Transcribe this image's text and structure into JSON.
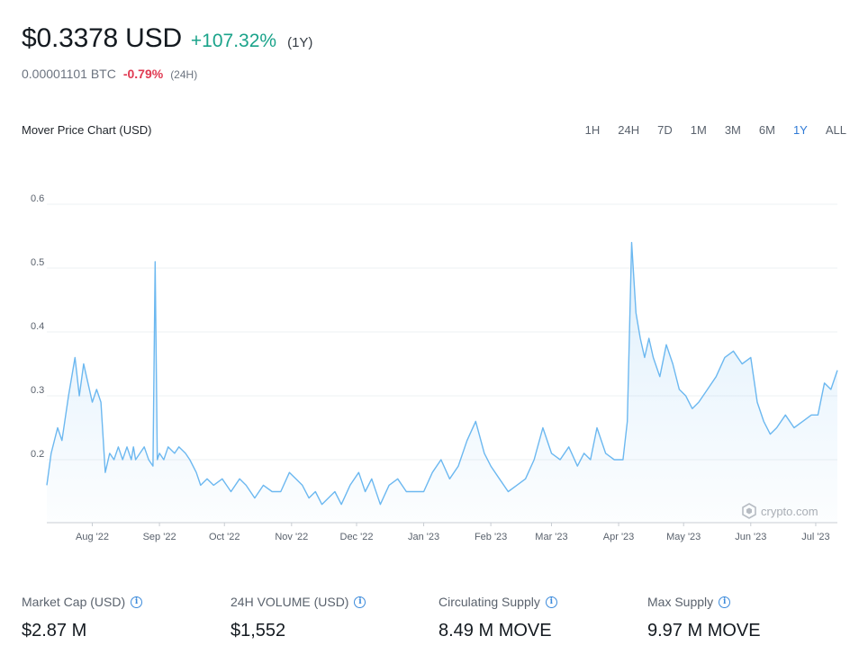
{
  "header": {
    "price": "$0.3378 USD",
    "change": "+107.32%",
    "period": "(1Y)",
    "btc_price": "0.00001101 BTC",
    "btc_change": "-0.79%",
    "btc_period": "(24H)"
  },
  "chart_header": {
    "title": "Mover Price Chart (USD)",
    "ranges": [
      "1H",
      "24H",
      "7D",
      "1M",
      "3M",
      "6M",
      "1Y",
      "ALL"
    ],
    "active_range": "1Y"
  },
  "watermark": "crypto.com",
  "colors": {
    "line": "#6cb8f0",
    "positive": "#1aa38a",
    "negative": "#e03a52",
    "active": "#2f7ad6"
  },
  "chart_data": {
    "type": "area",
    "title": "Mover Price Chart (USD)",
    "xlabel": "",
    "ylabel": "",
    "ylim": [
      0.1,
      0.6
    ],
    "yticks": [
      0.2,
      0.3,
      0.4,
      0.5,
      0.6
    ],
    "ytick_labels": [
      "0.2",
      "0.3",
      "0.4",
      "0.5",
      "0.6"
    ],
    "xtick_labels": [
      "Aug '22",
      "Sep '22",
      "Oct '22",
      "Nov '22",
      "Dec '22",
      "Jan '23",
      "Feb '23",
      "Mar '23",
      "Apr '23",
      "May '23",
      "Jun '23",
      "Jul '23"
    ],
    "xtick_dates": [
      "2022-08-01",
      "2022-09-01",
      "2022-10-01",
      "2022-11-01",
      "2022-12-01",
      "2023-01-01",
      "2023-02-01",
      "2023-03-01",
      "2023-04-01",
      "2023-05-01",
      "2023-06-01",
      "2023-07-01"
    ],
    "grid": true,
    "legend": "none",
    "series": [
      {
        "x": [
          "2022-07-11",
          "2022-07-13",
          "2022-07-16",
          "2022-07-18",
          "2022-07-21",
          "2022-07-24",
          "2022-07-26",
          "2022-07-28",
          "2022-07-30",
          "2022-08-01",
          "2022-08-03",
          "2022-08-05",
          "2022-08-07",
          "2022-08-09",
          "2022-08-11",
          "2022-08-13",
          "2022-08-15",
          "2022-08-17",
          "2022-08-19",
          "2022-08-20",
          "2022-08-21",
          "2022-08-23",
          "2022-08-25",
          "2022-08-27",
          "2022-08-29",
          "2022-08-30",
          "2022-08-31",
          "2022-09-01",
          "2022-09-03",
          "2022-09-05",
          "2022-09-08",
          "2022-09-10",
          "2022-09-13",
          "2022-09-15",
          "2022-09-18",
          "2022-09-20",
          "2022-09-23",
          "2022-09-26",
          "2022-09-30",
          "2022-10-04",
          "2022-10-08",
          "2022-10-11",
          "2022-10-15",
          "2022-10-19",
          "2022-10-23",
          "2022-10-27",
          "2022-10-31",
          "2022-11-03",
          "2022-11-06",
          "2022-11-09",
          "2022-11-12",
          "2022-11-15",
          "2022-11-18",
          "2022-11-21",
          "2022-11-24",
          "2022-11-28",
          "2022-12-02",
          "2022-12-05",
          "2022-12-08",
          "2022-12-12",
          "2022-12-16",
          "2022-12-20",
          "2022-12-24",
          "2022-12-28",
          "2023-01-01",
          "2023-01-05",
          "2023-01-09",
          "2023-01-13",
          "2023-01-17",
          "2023-01-21",
          "2023-01-25",
          "2023-01-29",
          "2023-02-01",
          "2023-02-05",
          "2023-02-09",
          "2023-02-13",
          "2023-02-17",
          "2023-02-21",
          "2023-02-25",
          "2023-03-01",
          "2023-03-05",
          "2023-03-09",
          "2023-03-13",
          "2023-03-16",
          "2023-03-19",
          "2023-03-22",
          "2023-03-26",
          "2023-03-30",
          "2023-04-03",
          "2023-04-05",
          "2023-04-07",
          "2023-04-09",
          "2023-04-11",
          "2023-04-13",
          "2023-04-15",
          "2023-04-17",
          "2023-04-20",
          "2023-04-23",
          "2023-04-26",
          "2023-04-29",
          "2023-05-02",
          "2023-05-05",
          "2023-05-08",
          "2023-05-12",
          "2023-05-16",
          "2023-05-20",
          "2023-05-24",
          "2023-05-28",
          "2023-06-01",
          "2023-06-04",
          "2023-06-07",
          "2023-06-10",
          "2023-06-13",
          "2023-06-17",
          "2023-06-21",
          "2023-06-25",
          "2023-06-29",
          "2023-07-02",
          "2023-07-05",
          "2023-07-08",
          "2023-07-11"
        ],
        "values": [
          0.16,
          0.21,
          0.25,
          0.23,
          0.3,
          0.36,
          0.3,
          0.35,
          0.32,
          0.29,
          0.31,
          0.29,
          0.18,
          0.21,
          0.2,
          0.22,
          0.2,
          0.22,
          0.2,
          0.22,
          0.2,
          0.21,
          0.22,
          0.2,
          0.19,
          0.51,
          0.2,
          0.21,
          0.2,
          0.22,
          0.21,
          0.22,
          0.21,
          0.2,
          0.18,
          0.16,
          0.17,
          0.16,
          0.17,
          0.15,
          0.17,
          0.16,
          0.14,
          0.16,
          0.15,
          0.15,
          0.18,
          0.17,
          0.16,
          0.14,
          0.15,
          0.13,
          0.14,
          0.15,
          0.13,
          0.16,
          0.18,
          0.15,
          0.17,
          0.13,
          0.16,
          0.17,
          0.15,
          0.15,
          0.15,
          0.18,
          0.2,
          0.17,
          0.19,
          0.23,
          0.26,
          0.21,
          0.19,
          0.17,
          0.15,
          0.16,
          0.17,
          0.2,
          0.25,
          0.21,
          0.2,
          0.22,
          0.19,
          0.21,
          0.2,
          0.25,
          0.21,
          0.2,
          0.2,
          0.26,
          0.54,
          0.43,
          0.39,
          0.36,
          0.39,
          0.36,
          0.33,
          0.38,
          0.35,
          0.31,
          0.3,
          0.28,
          0.29,
          0.31,
          0.33,
          0.36,
          0.37,
          0.35,
          0.36,
          0.29,
          0.26,
          0.24,
          0.25,
          0.27,
          0.25,
          0.26,
          0.27,
          0.27,
          0.32,
          0.31,
          0.34
        ]
      }
    ]
  },
  "stats": [
    {
      "label": "Market Cap (USD)",
      "value": "$2.87 M"
    },
    {
      "label": "24H VOLUME (USD)",
      "value": "$1,552"
    },
    {
      "label": "Circulating Supply",
      "value": "8.49 M MOVE"
    },
    {
      "label": "Max Supply",
      "value": "9.97 M MOVE"
    }
  ]
}
